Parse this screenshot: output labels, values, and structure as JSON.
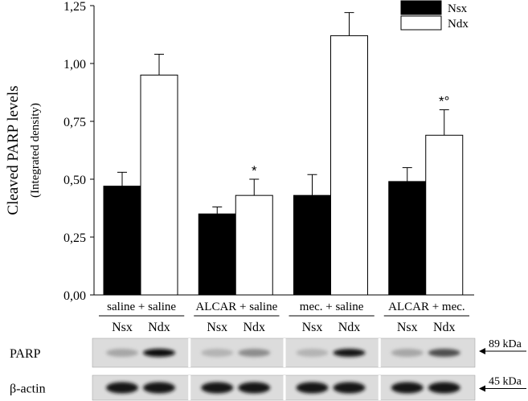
{
  "chart_data": {
    "type": "bar",
    "ylabel": "Cleaved PARP levels",
    "ylabel_sub": "(Integrated density)",
    "ylim": [
      0,
      1.25
    ],
    "yticks": [
      "0,00",
      "0,25",
      "0,50",
      "0,75",
      "1,00",
      "1,25"
    ],
    "ytick_values": [
      0,
      0.25,
      0.5,
      0.75,
      1.0,
      1.25
    ],
    "groups": [
      "saline + saline",
      "ALCAR + saline",
      "mec. + saline",
      "ALCAR + mec."
    ],
    "subcategories": [
      "Nsx",
      "Ndx",
      "Nsx",
      "Ndx",
      "Nsx",
      "Ndx",
      "Nsx",
      "Ndx"
    ],
    "series": [
      {
        "name": "Nsx",
        "values": [
          0.47,
          0.35,
          0.43,
          0.49
        ],
        "errors": [
          0.06,
          0.03,
          0.09,
          0.06
        ],
        "color": "#000000"
      },
      {
        "name": "Ndx",
        "values": [
          0.95,
          0.43,
          1.12,
          0.69
        ],
        "errors": [
          0.09,
          0.07,
          0.1,
          0.11
        ],
        "color": "#ffffff"
      }
    ],
    "annotations": [
      {
        "group": 1,
        "series": "Ndx",
        "text": "*"
      },
      {
        "group": 3,
        "series": "Ndx",
        "text": "*°"
      }
    ],
    "legend": {
      "placement": "top-right",
      "entries": [
        "Nsx",
        "Ndx"
      ]
    },
    "grid": false
  },
  "blot": {
    "rows": [
      {
        "label": "PARP",
        "marker": "89 kDa",
        "intensities": [
          0.35,
          0.95,
          0.3,
          0.45,
          0.3,
          0.9,
          0.35,
          0.7
        ]
      },
      {
        "label": "β-actin",
        "marker": "45 kDa",
        "intensities": [
          0.9,
          0.9,
          0.9,
          0.9,
          0.9,
          0.9,
          0.9,
          0.9
        ]
      }
    ]
  }
}
